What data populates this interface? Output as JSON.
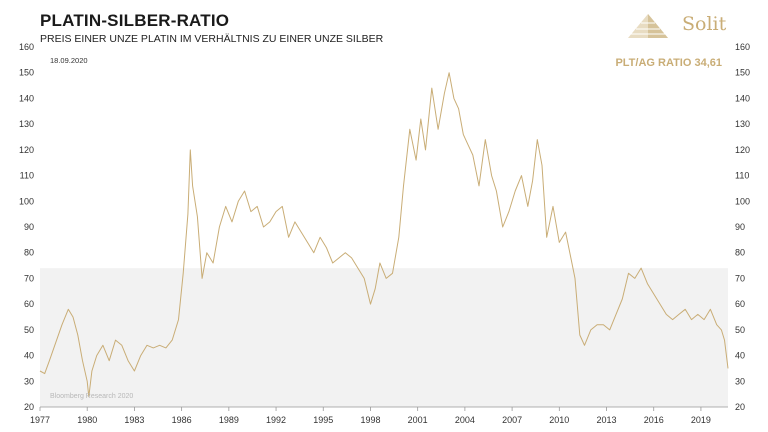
{
  "header": {
    "title": "PLATIN-SILBER-RATIO",
    "subtitle": "PREIS EINER UNZE PLATIN IM VERHÄLTNIS ZU EINER UNZE SILBER",
    "brand": "Solit",
    "current_ratio": "PLT/AG RATIO 34,61",
    "date": "18.09.2020",
    "credit": "Bloomberg Research 2020"
  },
  "colors": {
    "line": "#c9ad76",
    "band": "#f2f2f2",
    "text": "#1a1a1a"
  },
  "chart_data": {
    "type": "line",
    "xlim": [
      1977,
      2020.72
    ],
    "ylim": [
      20,
      160
    ],
    "x_ticks": [
      "1977",
      "1980",
      "1983",
      "1986",
      "1989",
      "1992",
      "1995",
      "1998",
      "2001",
      "2004",
      "2007",
      "2010",
      "2013",
      "2016",
      "2019"
    ],
    "y_ticks": [
      20,
      30,
      40,
      50,
      60,
      70,
      80,
      90,
      100,
      110,
      120,
      130,
      140,
      150,
      160
    ],
    "band_upper": 74,
    "series": [
      {
        "x": [
          1977.0,
          1977.3,
          1977.6,
          1978.0,
          1978.4,
          1978.8,
          1979.1,
          1979.4,
          1979.7,
          1980.0,
          1980.1,
          1980.3,
          1980.6,
          1981.0,
          1981.4,
          1981.8,
          1982.2,
          1982.6,
          1983.0,
          1983.4,
          1983.8,
          1984.2,
          1984.6,
          1985.0,
          1985.4,
          1985.8,
          1986.1,
          1986.4,
          1986.55,
          1986.7,
          1987.0,
          1987.3,
          1987.6,
          1988.0,
          1988.4,
          1988.8,
          1989.2,
          1989.6,
          1990.0,
          1990.4,
          1990.8,
          1991.2,
          1991.6,
          1992.0,
          1992.4,
          1992.8,
          1993.2,
          1993.6,
          1994.0,
          1994.4,
          1994.8,
          1995.2,
          1995.6,
          1996.0,
          1996.4,
          1996.8,
          1997.2,
          1997.6,
          1998.0,
          1998.3,
          1998.6,
          1999.0,
          1999.4,
          1999.8,
          2000.1,
          2000.5,
          2000.9,
          2001.2,
          2001.5,
          2001.9,
          2002.3,
          2002.7,
          2003.0,
          2003.3,
          2003.6,
          2003.9,
          2004.2,
          2004.5,
          2004.9,
          2005.3,
          2005.7,
          2006.0,
          2006.4,
          2006.8,
          2007.2,
          2007.6,
          2008.0,
          2008.3,
          2008.6,
          2008.9,
          2009.2,
          2009.6,
          2010.0,
          2010.4,
          2010.8,
          2011.0,
          2011.3,
          2011.6,
          2012.0,
          2012.4,
          2012.8,
          2013.2,
          2013.6,
          2014.0,
          2014.4,
          2014.8,
          2015.2,
          2015.6,
          2016.0,
          2016.4,
          2016.8,
          2017.2,
          2017.6,
          2018.0,
          2018.4,
          2018.8,
          2019.2,
          2019.6,
          2020.0,
          2020.3,
          2020.5,
          2020.72
        ],
        "y": [
          34,
          33,
          38,
          45,
          52,
          58,
          55,
          48,
          38,
          30,
          24,
          34,
          40,
          44,
          38,
          46,
          44,
          38,
          34,
          40,
          44,
          43,
          44,
          43,
          46,
          54,
          72,
          95,
          120,
          106,
          94,
          70,
          80,
          76,
          90,
          98,
          92,
          100,
          104,
          96,
          98,
          90,
          92,
          96,
          98,
          86,
          92,
          88,
          84,
          80,
          86,
          82,
          76,
          78,
          80,
          78,
          74,
          70,
          60,
          66,
          76,
          70,
          72,
          86,
          106,
          128,
          116,
          132,
          120,
          144,
          128,
          142,
          150,
          140,
          136,
          126,
          122,
          118,
          106,
          124,
          110,
          104,
          90,
          96,
          104,
          110,
          98,
          108,
          124,
          114,
          86,
          98,
          84,
          88,
          76,
          70,
          48,
          44,
          50,
          52,
          52,
          50,
          56,
          62,
          72,
          70,
          74,
          68,
          64,
          60,
          56,
          54,
          56,
          58,
          54,
          56,
          54,
          58,
          52,
          50,
          46,
          35
        ]
      }
    ]
  }
}
